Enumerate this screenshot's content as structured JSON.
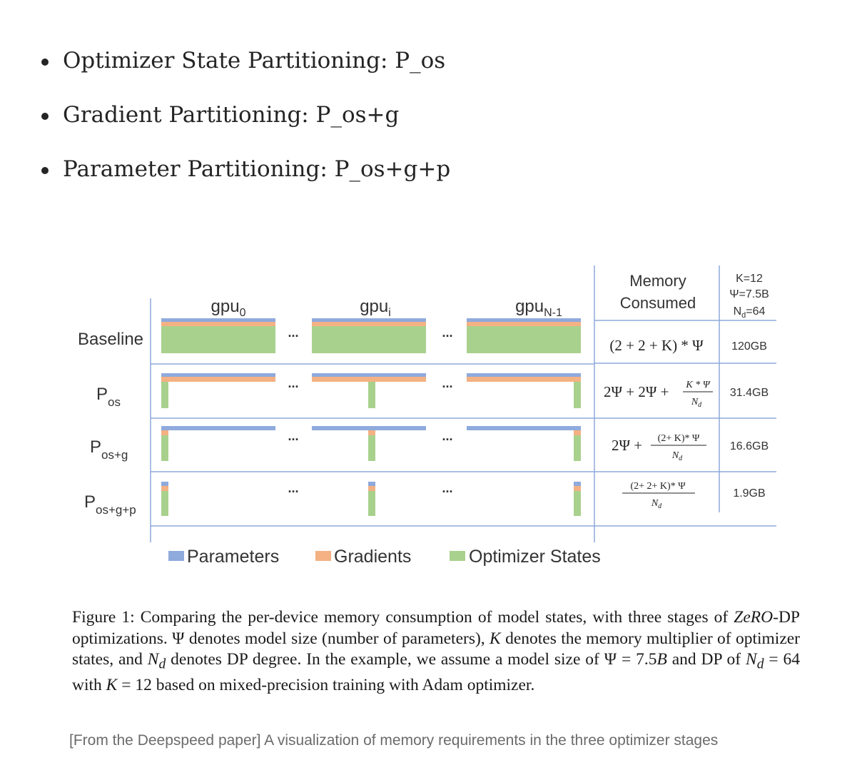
{
  "bullets": [
    "Optimizer State Partitioning: P_os",
    "Gradient Partitioning: P_os+g",
    "Parameter Partitioning: P_os+g+p"
  ],
  "figure": {
    "gpu_labels": [
      {
        "base": "gpu",
        "sub": "0"
      },
      {
        "base": "gpu",
        "sub": "i"
      },
      {
        "base": "gpu",
        "sub": "N-1"
      }
    ],
    "rows": [
      {
        "label": "Baseline",
        "sub": "",
        "formula": "(2 + 2 + K) * Ψ",
        "memory": "120GB"
      },
      {
        "label": "P",
        "sub": "os",
        "formula_lead": "2Ψ + 2Ψ +",
        "formula_num": "K * Ψ",
        "formula_den": "N",
        "formula_den_sub": "d",
        "memory": "31.4GB"
      },
      {
        "label": "P",
        "sub": "os+g",
        "formula_lead": "2Ψ +",
        "formula_num": "(2+ K)* Ψ",
        "formula_den": "N",
        "formula_den_sub": "d",
        "memory": "16.6GB"
      },
      {
        "label": "P",
        "sub": "os+g+p",
        "formula_num": "(2+ 2+ K)* Ψ",
        "formula_den": "N",
        "formula_den_sub": "d",
        "memory": "1.9GB"
      }
    ],
    "memory_header": [
      "Memory",
      "Consumed"
    ],
    "params_header": {
      "k": "K=12",
      "psi": "Ψ=7.5B",
      "nd_base": "N",
      "nd_sub": "d",
      "nd_val": "=64"
    },
    "ellipsis": "...",
    "legend": [
      {
        "label": "Parameters",
        "color": "#8faadc"
      },
      {
        "label": "Gradients",
        "color": "#f4b183"
      },
      {
        "label": "Optimizer States",
        "color": "#a9d18e"
      }
    ],
    "colors": {
      "parameters": "#8faadc",
      "gradients": "#f4b183",
      "optimizer": "#a9d18e",
      "grid": "#8eaadb",
      "axis": "#4472c4"
    }
  },
  "caption": {
    "c1": "Figure 1: Comparing the per-device memory consumption of model states, with three stages of ",
    "c2": "ZeRO",
    "c3": "-DP optimizations. Ψ denotes model size (number of parameters), ",
    "c4": "K",
    "c5": " denotes the memory multiplier of optimizer states, and ",
    "c6": "N",
    "c7": "d",
    "c8": " denotes DP degree. In the example, we assume a model size of Ψ = 7.5",
    "c9": "B",
    "c10": " and DP of ",
    "c11": "N",
    "c12": "d",
    "c13": " = 64 with ",
    "c14": "K",
    "c15": " = 12 based on mixed-precision training with Adam optimizer."
  },
  "source": "[From the Deepspeed paper] A visualization of memory requirements in the three optimizer stages"
}
